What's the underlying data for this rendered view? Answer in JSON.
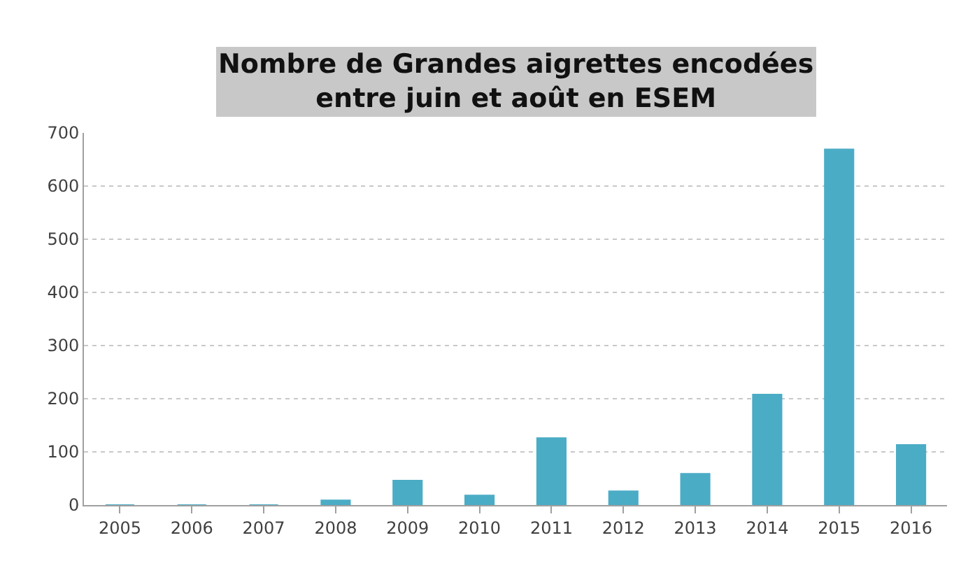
{
  "chart_data": {
    "type": "bar",
    "title": "Nombre de Grandes aigrettes encodées\nentre juin et août en ESEM",
    "categories": [
      "2005",
      "2006",
      "2007",
      "2008",
      "2009",
      "2010",
      "2011",
      "2012",
      "2013",
      "2014",
      "2015",
      "2016"
    ],
    "values": [
      0,
      0,
      0,
      9,
      46,
      18,
      126,
      26,
      59,
      208,
      669,
      113
    ],
    "color": "#4bacc6",
    "ylim": [
      0,
      700
    ],
    "yticks": [
      0,
      100,
      200,
      300,
      400,
      500,
      600,
      700
    ],
    "grid": "y",
    "legend": false
  }
}
